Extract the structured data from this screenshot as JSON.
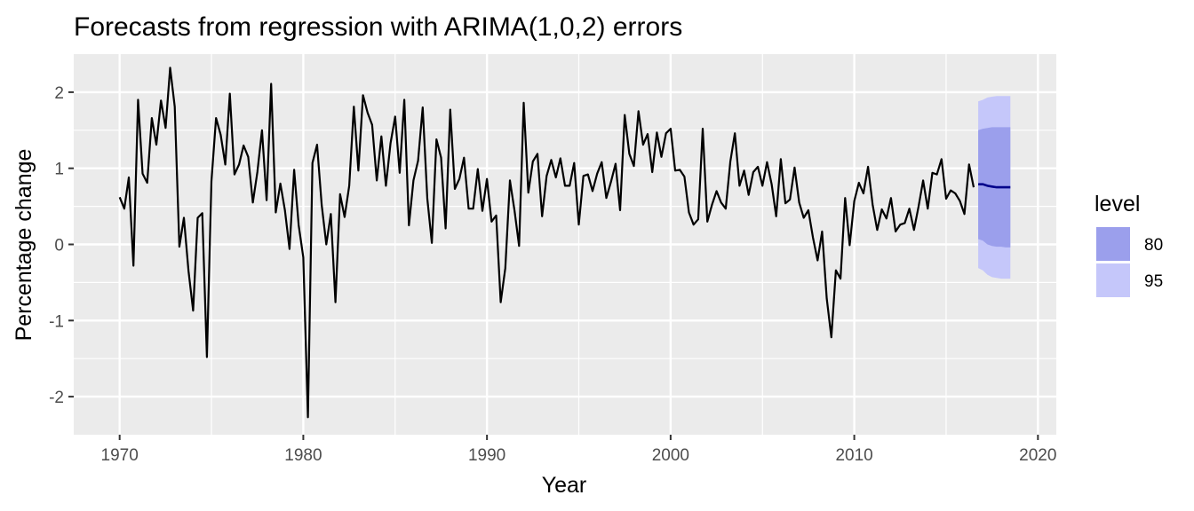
{
  "chart_data": {
    "type": "line",
    "title": "Forecasts from regression with ARIMA(1,0,2) errors",
    "xlabel": "Year",
    "ylabel": "Percentage change",
    "xlim": [
      1967.5,
      2021.0
    ],
    "ylim": [
      -2.5,
      2.5
    ],
    "x_ticks": [
      1970,
      1980,
      1990,
      2000,
      2010,
      2020
    ],
    "x_tick_labels": [
      "1970",
      "1980",
      "1990",
      "2000",
      "2010",
      "2020"
    ],
    "y_ticks": [
      -2,
      -1,
      0,
      1,
      2
    ],
    "y_tick_labels": [
      "-2",
      "-1",
      "0",
      "1",
      "2"
    ],
    "grid": true,
    "legend": {
      "title": "level",
      "placement": "right",
      "entries": [
        {
          "label": "80",
          "color": "#9b9fec"
        },
        {
          "label": "95",
          "color": "#c5c7fa"
        }
      ]
    },
    "colors": {
      "panel_background": "#ebebeb",
      "grid": "#ffffff",
      "series_line": "#000000",
      "forecast_line": "#00008b",
      "band_80": "#9b9fec",
      "band_95": "#c5c7fa"
    },
    "series": [
      {
        "start": 1970.0,
        "frequency": 4,
        "values": [
          0.62,
          0.47,
          0.88,
          -0.28,
          1.9,
          0.93,
          0.81,
          1.66,
          1.31,
          1.89,
          1.53,
          2.32,
          1.81,
          -0.03,
          0.35,
          -0.35,
          -0.87,
          0.35,
          0.41,
          -1.48,
          0.83,
          1.66,
          1.44,
          1.05,
          1.98,
          0.92,
          1.05,
          1.3,
          1.15,
          0.55,
          0.95,
          1.5,
          0.58,
          2.11,
          0.42,
          0.8,
          0.45,
          -0.06,
          0.98,
          0.25,
          -0.17,
          -2.27,
          1.07,
          1.31,
          0.52,
          0.0,
          0.4,
          -0.76,
          0.66,
          0.36,
          0.77,
          1.81,
          0.97,
          1.96,
          1.73,
          1.57,
          0.84,
          1.42,
          0.77,
          1.33,
          1.68,
          0.94,
          1.9,
          0.25,
          0.84,
          1.1,
          1.8,
          0.6,
          0.02,
          1.38,
          1.14,
          0.21,
          1.77,
          0.73,
          0.86,
          1.14,
          0.47,
          0.47,
          0.99,
          0.44,
          0.86,
          0.3,
          0.38,
          -0.76,
          -0.31,
          0.84,
          0.45,
          -0.02,
          1.86,
          0.68,
          1.09,
          1.19,
          0.37,
          0.9,
          1.11,
          0.88,
          1.13,
          0.77,
          0.77,
          1.07,
          0.26,
          0.9,
          0.92,
          0.7,
          0.93,
          1.08,
          0.61,
          0.82,
          1.06,
          0.45,
          1.7,
          1.19,
          1.03,
          1.75,
          1.31,
          1.45,
          0.95,
          1.47,
          1.15,
          1.46,
          1.52,
          0.97,
          0.98,
          0.89,
          0.42,
          0.26,
          0.33,
          1.52,
          0.3,
          0.52,
          0.7,
          0.55,
          0.47,
          1.09,
          1.46,
          0.77,
          0.97,
          0.65,
          0.95,
          1.02,
          0.77,
          1.08,
          0.79,
          0.37,
          1.12,
          0.54,
          0.59,
          1.01,
          0.55,
          0.35,
          0.45,
          0.09,
          -0.21,
          0.17,
          -0.71,
          -1.22,
          -0.34,
          -0.45,
          0.61,
          -0.01,
          0.57,
          0.81,
          0.67,
          1.02,
          0.52,
          0.19,
          0.46,
          0.34,
          0.61,
          0.17,
          0.26,
          0.28,
          0.47,
          0.19,
          0.5,
          0.84,
          0.47,
          0.94,
          0.92,
          1.12,
          0.6,
          0.71,
          0.67,
          0.57,
          0.4,
          1.05,
          0.75
        ]
      },
      {
        "name": "forecast",
        "x": [
          2016.75,
          2017.0,
          2017.25,
          2017.5,
          2017.75,
          2018.0,
          2018.25,
          2018.5
        ],
        "mean": [
          0.79,
          0.79,
          0.77,
          0.76,
          0.75,
          0.75,
          0.75,
          0.75
        ],
        "lo80": [
          0.07,
          0.05,
          0.0,
          -0.02,
          -0.03,
          -0.03,
          -0.04,
          -0.04
        ],
        "hi80": [
          1.5,
          1.52,
          1.53,
          1.54,
          1.54,
          1.54,
          1.54,
          1.54
        ],
        "lo95": [
          -0.31,
          -0.34,
          -0.4,
          -0.43,
          -0.44,
          -0.45,
          -0.45,
          -0.45
        ],
        "hi95": [
          1.88,
          1.9,
          1.93,
          1.94,
          1.95,
          1.95,
          1.95,
          1.95
        ]
      }
    ]
  }
}
